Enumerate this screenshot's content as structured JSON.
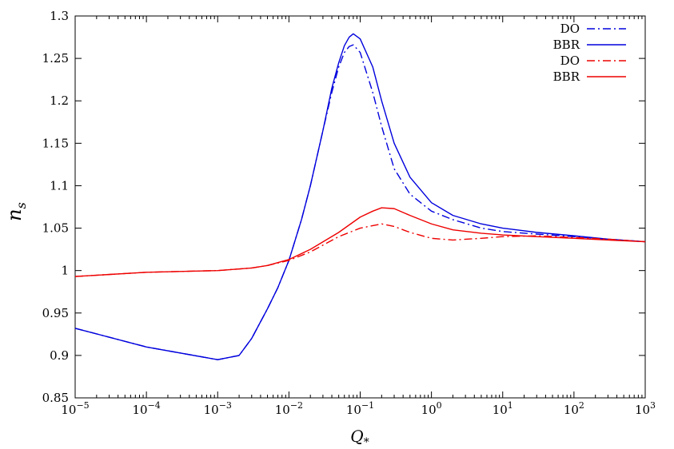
{
  "chart_data": {
    "type": "line",
    "title": "",
    "xlabel": "Q",
    "xlabel_sub": "*",
    "ylabel": "n",
    "ylabel_sub": "s",
    "xscale": "log",
    "xlim": [
      1e-05,
      1000
    ],
    "ylim": [
      0.85,
      1.3
    ],
    "x_ticks": [
      {
        "value": 1e-05,
        "base": "10",
        "exp": "−5"
      },
      {
        "value": 0.0001,
        "base": "10",
        "exp": "−4"
      },
      {
        "value": 0.001,
        "base": "10",
        "exp": "−3"
      },
      {
        "value": 0.01,
        "base": "10",
        "exp": "−2"
      },
      {
        "value": 0.1,
        "base": "10",
        "exp": "−1"
      },
      {
        "value": 1,
        "base": "10",
        "exp": "0"
      },
      {
        "value": 10,
        "base": "10",
        "exp": "1"
      },
      {
        "value": 100,
        "base": "10",
        "exp": "2"
      },
      {
        "value": 1000,
        "base": "10",
        "exp": "3"
      }
    ],
    "y_ticks": [
      {
        "value": 0.85,
        "label": "0.85"
      },
      {
        "value": 0.9,
        "label": "0.9"
      },
      {
        "value": 0.95,
        "label": "0.95"
      },
      {
        "value": 1.0,
        "label": "1"
      },
      {
        "value": 1.05,
        "label": "1.05"
      },
      {
        "value": 1.1,
        "label": "1.1"
      },
      {
        "value": 1.15,
        "label": "1.15"
      },
      {
        "value": 1.2,
        "label": "1.2"
      },
      {
        "value": 1.25,
        "label": "1.25"
      },
      {
        "value": 1.3,
        "label": "1.3"
      }
    ],
    "grid": false,
    "legend_position": "top-right",
    "series": [
      {
        "name": "DO",
        "color": "#0000dd",
        "dash": "dashdot",
        "points": [
          [
            1e-05,
            0.932
          ],
          [
            0.0001,
            0.91
          ],
          [
            0.001,
            0.895
          ],
          [
            0.002,
            0.9
          ],
          [
            0.003,
            0.92
          ],
          [
            0.005,
            0.955
          ],
          [
            0.007,
            0.98
          ],
          [
            0.01,
            1.012
          ],
          [
            0.015,
            1.06
          ],
          [
            0.02,
            1.1
          ],
          [
            0.03,
            1.165
          ],
          [
            0.04,
            1.21
          ],
          [
            0.05,
            1.24
          ],
          [
            0.06,
            1.257
          ],
          [
            0.07,
            1.264
          ],
          [
            0.08,
            1.266
          ],
          [
            0.1,
            1.257
          ],
          [
            0.15,
            1.21
          ],
          [
            0.2,
            1.17
          ],
          [
            0.3,
            1.12
          ],
          [
            0.5,
            1.09
          ],
          [
            1,
            1.07
          ],
          [
            2,
            1.06
          ],
          [
            5,
            1.05
          ],
          [
            10,
            1.046
          ],
          [
            30,
            1.043
          ],
          [
            100,
            1.04
          ],
          [
            300,
            1.037
          ],
          [
            1000,
            1.034
          ]
        ]
      },
      {
        "name": "BBR",
        "color": "#0000dd",
        "dash": "solid",
        "points": [
          [
            1e-05,
            0.932
          ],
          [
            0.0001,
            0.91
          ],
          [
            0.001,
            0.895
          ],
          [
            0.002,
            0.9
          ],
          [
            0.003,
            0.92
          ],
          [
            0.005,
            0.955
          ],
          [
            0.007,
            0.98
          ],
          [
            0.01,
            1.012
          ],
          [
            0.015,
            1.06
          ],
          [
            0.02,
            1.1
          ],
          [
            0.03,
            1.165
          ],
          [
            0.04,
            1.215
          ],
          [
            0.05,
            1.245
          ],
          [
            0.06,
            1.265
          ],
          [
            0.07,
            1.275
          ],
          [
            0.08,
            1.279
          ],
          [
            0.1,
            1.273
          ],
          [
            0.15,
            1.24
          ],
          [
            0.2,
            1.2
          ],
          [
            0.3,
            1.15
          ],
          [
            0.5,
            1.11
          ],
          [
            1,
            1.08
          ],
          [
            2,
            1.065
          ],
          [
            5,
            1.055
          ],
          [
            10,
            1.05
          ],
          [
            30,
            1.045
          ],
          [
            100,
            1.041
          ],
          [
            300,
            1.037
          ],
          [
            1000,
            1.034
          ]
        ]
      },
      {
        "name": "DO",
        "color": "#ee0000",
        "dash": "dashdot",
        "points": [
          [
            1e-05,
            0.993
          ],
          [
            0.0001,
            0.998
          ],
          [
            0.001,
            1.0
          ],
          [
            0.003,
            1.003
          ],
          [
            0.005,
            1.006
          ],
          [
            0.01,
            1.012
          ],
          [
            0.02,
            1.022
          ],
          [
            0.05,
            1.04
          ],
          [
            0.1,
            1.05
          ],
          [
            0.2,
            1.055
          ],
          [
            0.3,
            1.052
          ],
          [
            0.5,
            1.045
          ],
          [
            1,
            1.038
          ],
          [
            2,
            1.036
          ],
          [
            5,
            1.038
          ],
          [
            10,
            1.04
          ],
          [
            30,
            1.041
          ],
          [
            100,
            1.039
          ],
          [
            300,
            1.037
          ],
          [
            1000,
            1.034
          ]
        ]
      },
      {
        "name": "BBR",
        "color": "#ee0000",
        "dash": "solid",
        "points": [
          [
            1e-05,
            0.993
          ],
          [
            0.0001,
            0.998
          ],
          [
            0.001,
            1.0
          ],
          [
            0.003,
            1.003
          ],
          [
            0.005,
            1.006
          ],
          [
            0.01,
            1.013
          ],
          [
            0.02,
            1.025
          ],
          [
            0.05,
            1.045
          ],
          [
            0.1,
            1.063
          ],
          [
            0.15,
            1.07
          ],
          [
            0.2,
            1.074
          ],
          [
            0.3,
            1.073
          ],
          [
            0.5,
            1.065
          ],
          [
            1,
            1.055
          ],
          [
            2,
            1.048
          ],
          [
            5,
            1.044
          ],
          [
            10,
            1.042
          ],
          [
            30,
            1.04
          ],
          [
            100,
            1.038
          ],
          [
            300,
            1.036
          ],
          [
            1000,
            1.034
          ]
        ]
      }
    ]
  }
}
